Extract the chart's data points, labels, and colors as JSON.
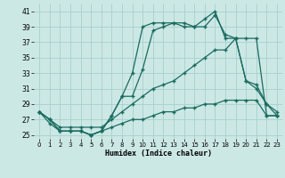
{
  "xlabel": "Humidex (Indice chaleur)",
  "bg_color": "#cce8e5",
  "grid_color": "#a8d0cc",
  "line_color": "#1a6b60",
  "xlim": [
    -0.5,
    23.5
  ],
  "ylim": [
    24.5,
    42.0
  ],
  "xticks": [
    0,
    1,
    2,
    3,
    4,
    5,
    6,
    7,
    8,
    9,
    10,
    11,
    12,
    13,
    14,
    15,
    16,
    17,
    18,
    19,
    20,
    21,
    22,
    23
  ],
  "yticks": [
    25,
    27,
    29,
    31,
    33,
    35,
    37,
    39,
    41
  ],
  "line_A_x": [
    0,
    1,
    2,
    3,
    4,
    5,
    6,
    7,
    8,
    9,
    10,
    11,
    12,
    13,
    14,
    15,
    16,
    17,
    18,
    19,
    20,
    21,
    22,
    23
  ],
  "line_A_y": [
    28.0,
    26.5,
    25.5,
    25.5,
    25.5,
    25.0,
    25.5,
    26.0,
    26.5,
    27.0,
    27.0,
    27.5,
    28.0,
    28.0,
    28.5,
    28.5,
    29.0,
    29.0,
    29.5,
    29.5,
    29.5,
    29.5,
    27.5,
    27.5
  ],
  "line_B_x": [
    0,
    1,
    2,
    3,
    4,
    5,
    6,
    7,
    8,
    9,
    10,
    11,
    12,
    13,
    14,
    15,
    16,
    17,
    18,
    19,
    20,
    21,
    22,
    23
  ],
  "line_B_y": [
    28.0,
    27.0,
    26.0,
    26.0,
    26.0,
    26.0,
    26.0,
    27.0,
    28.0,
    29.0,
    30.0,
    31.0,
    31.5,
    32.0,
    33.0,
    34.0,
    35.0,
    36.0,
    36.0,
    37.5,
    37.5,
    37.5,
    27.5,
    27.5
  ],
  "line_C_x": [
    0,
    1,
    2,
    3,
    4,
    5,
    6,
    7,
    8,
    9,
    10,
    11,
    12,
    13,
    14,
    15,
    16,
    17,
    18,
    19,
    20,
    21,
    22,
    23
  ],
  "line_C_y": [
    28.0,
    27.0,
    25.5,
    25.5,
    25.5,
    25.0,
    25.5,
    27.5,
    30.0,
    33.0,
    39.0,
    39.5,
    39.5,
    39.5,
    39.0,
    39.0,
    40.0,
    41.0,
    37.5,
    37.5,
    32.0,
    31.0,
    29.0,
    27.5
  ],
  "line_D_x": [
    0,
    1,
    2,
    3,
    4,
    5,
    6,
    7,
    8,
    9,
    10,
    11,
    12,
    13,
    14,
    15,
    16,
    17,
    18,
    19,
    20,
    21,
    22,
    23
  ],
  "line_D_y": [
    28.0,
    27.0,
    25.5,
    25.5,
    25.5,
    25.0,
    25.5,
    27.5,
    30.0,
    30.0,
    33.5,
    38.5,
    39.0,
    39.5,
    39.5,
    39.0,
    39.0,
    40.5,
    38.0,
    37.5,
    32.0,
    31.5,
    29.0,
    28.0
  ]
}
